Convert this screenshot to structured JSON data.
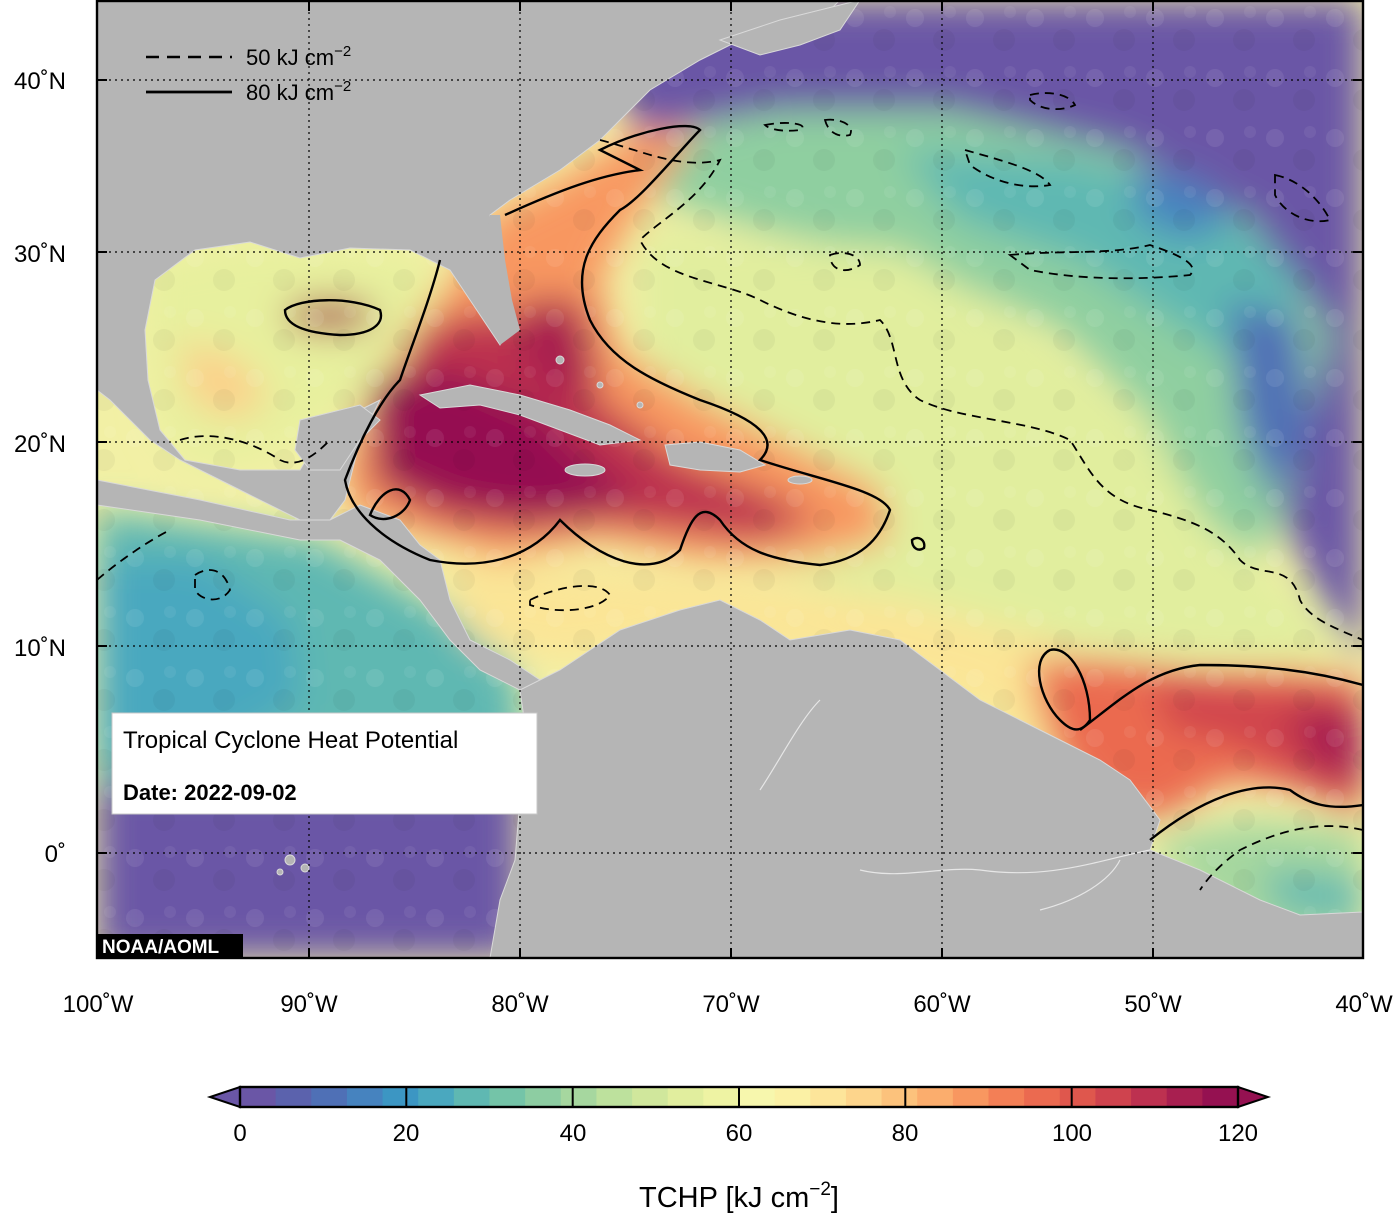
{
  "map": {
    "info_box": {
      "title": "Tropical Cyclone Heat Potential",
      "date_label": "Date: 2022-09-02"
    },
    "credit": "NOAA/AOML",
    "lon_labels": [
      "100˚W",
      "90˚W",
      "80˚W",
      "70˚W",
      "60˚W",
      "50˚W",
      "40˚W"
    ],
    "lat_labels": [
      "40˚N",
      "30˚N",
      "20˚N",
      "10˚N",
      "0˚"
    ],
    "contour_legend": [
      {
        "value": "50",
        "unit": "kJ cm",
        "exp": "−2",
        "style": "dashed"
      },
      {
        "value": "80",
        "unit": "kJ cm",
        "exp": "−2",
        "style": "solid"
      }
    ],
    "colorbar": {
      "ticks": [
        "0",
        "20",
        "40",
        "60",
        "80",
        "100",
        "120"
      ],
      "label_main": "TCHP [kJ cm",
      "label_exp": "−2",
      "label_end": "]",
      "colors": [
        "#6a56a6",
        "#5b62ad",
        "#4f70b6",
        "#4683bf",
        "#3c96c3",
        "#4aa8bf",
        "#5fb8b2",
        "#74c4a8",
        "#8dcda2",
        "#a6d79f",
        "#bde19d",
        "#d0e79c",
        "#e1ee9e",
        "#eef3a3",
        "#f7f7ad",
        "#fbf1a5",
        "#fde59a",
        "#fdd58c",
        "#fcc27c",
        "#fbad6d",
        "#f89760",
        "#f37f56",
        "#eb6a50",
        "#df574d",
        "#cf434e",
        "#bd3150",
        "#a81f50",
        "#951151"
      ],
      "under_color": "#6a56a6",
      "over_color": "#951151"
    }
  }
}
